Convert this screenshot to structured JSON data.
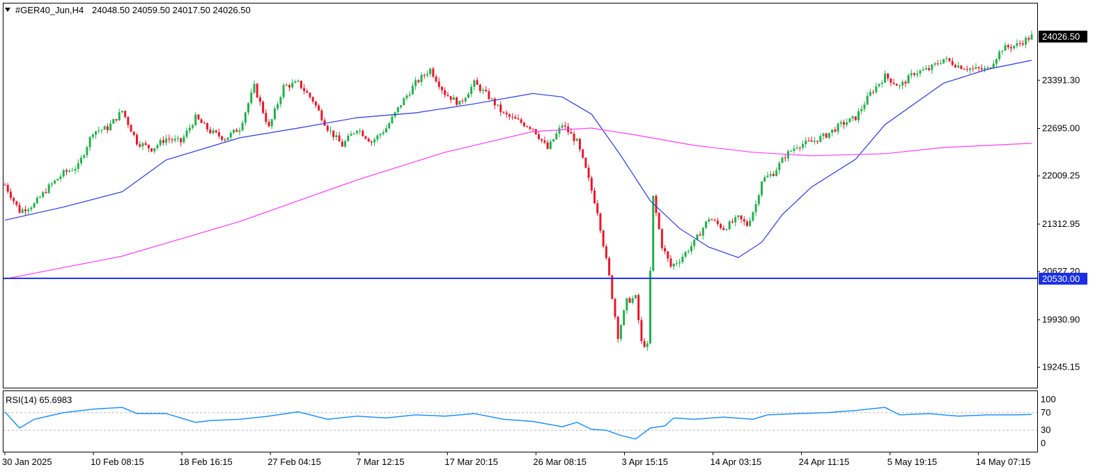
{
  "chart_data": [
    {
      "type": "candlestick",
      "symbol_label": "#GER40_Jun,H4",
      "ohlc_label": "24048.50 24059.50 24017.50 24026.50",
      "current_price_label": "24026.50",
      "hline_label": "20530.00",
      "hline_value": 20530.0,
      "ylim": [
        18950,
        24500
      ],
      "yticks": [
        "24026.50",
        "23391.30",
        "22695.00",
        "22009.25",
        "21312.95",
        "20627.20",
        "19930.90",
        "19245.15"
      ],
      "ytick_values": [
        24026.5,
        23391.3,
        22695.0,
        22009.25,
        21312.95,
        20627.2,
        19930.9,
        19245.15
      ],
      "xticks": [
        "30 Jan 2025",
        "10 Feb 08:15",
        "18 Feb 16:15",
        "27 Feb 04:15",
        "7 Mar 12:15",
        "17 Mar 20:15",
        "26 Mar 08:15",
        "3 Apr 15:15",
        "14 Apr 03:15",
        "24 Apr 11:15",
        "5 May 19:15",
        "14 May 07:15"
      ],
      "close_path": [
        [
          0,
          21880
        ],
        [
          5,
          21500
        ],
        [
          10,
          21600
        ],
        [
          15,
          21850
        ],
        [
          20,
          22050
        ],
        [
          25,
          22150
        ],
        [
          30,
          22650
        ],
        [
          35,
          22700
        ],
        [
          40,
          22950
        ],
        [
          45,
          22500
        ],
        [
          50,
          22400
        ],
        [
          55,
          22550
        ],
        [
          60,
          22500
        ],
        [
          65,
          22850
        ],
        [
          70,
          22650
        ],
        [
          75,
          22550
        ],
        [
          80,
          22700
        ],
        [
          85,
          23300
        ],
        [
          90,
          22700
        ],
        [
          95,
          23300
        ],
        [
          100,
          23350
        ],
        [
          105,
          23100
        ],
        [
          110,
          22700
        ],
        [
          115,
          22450
        ],
        [
          120,
          22700
        ],
        [
          125,
          22500
        ],
        [
          130,
          22700
        ],
        [
          135,
          23050
        ],
        [
          140,
          23350
        ],
        [
          145,
          23550
        ],
        [
          150,
          23200
        ],
        [
          155,
          23050
        ],
        [
          160,
          23350
        ],
        [
          165,
          23150
        ],
        [
          170,
          22900
        ],
        [
          175,
          22800
        ],
        [
          180,
          22700
        ],
        [
          185,
          22400
        ],
        [
          190,
          22750
        ],
        [
          195,
          22500
        ],
        [
          198,
          22100
        ],
        [
          202,
          21500
        ],
        [
          206,
          20550
        ],
        [
          209,
          19700
        ],
        [
          212,
          20200
        ],
        [
          215,
          20250
        ],
        [
          217,
          19600
        ],
        [
          219,
          19550
        ],
        [
          221,
          21700
        ],
        [
          224,
          21000
        ],
        [
          227,
          20700
        ],
        [
          230,
          20800
        ],
        [
          235,
          21050
        ],
        [
          240,
          21400
        ],
        [
          245,
          21250
        ],
        [
          250,
          21400
        ],
        [
          253,
          21300
        ],
        [
          256,
          21600
        ],
        [
          258,
          21950
        ],
        [
          262,
          22050
        ],
        [
          266,
          22300
        ],
        [
          270,
          22450
        ],
        [
          275,
          22500
        ],
        [
          280,
          22600
        ],
        [
          285,
          22750
        ],
        [
          290,
          22850
        ],
        [
          295,
          23200
        ],
        [
          300,
          23450
        ],
        [
          305,
          23300
        ],
        [
          310,
          23500
        ],
        [
          315,
          23550
        ],
        [
          320,
          23700
        ],
        [
          325,
          23600
        ],
        [
          330,
          23550
        ],
        [
          335,
          23550
        ],
        [
          340,
          23850
        ],
        [
          345,
          23900
        ],
        [
          350,
          24026.5
        ]
      ],
      "series": [
        {
          "color": "#2b36e6",
          "points": [
            [
              0,
              21370
            ],
            [
              20,
              21560
            ],
            [
              40,
              21780
            ],
            [
              55,
              22240
            ],
            [
              80,
              22560
            ],
            [
              100,
              22700
            ],
            [
              120,
              22850
            ],
            [
              140,
              22920
            ],
            [
              160,
              23050
            ],
            [
              180,
              23200
            ],
            [
              190,
              23150
            ],
            [
              200,
              22900
            ],
            [
              210,
              22300
            ],
            [
              220,
              21650
            ],
            [
              230,
              21250
            ],
            [
              240,
              20980
            ],
            [
              250,
              20830
            ],
            [
              258,
              21050
            ],
            [
              265,
              21450
            ],
            [
              275,
              21850
            ],
            [
              290,
              22250
            ],
            [
              300,
              22750
            ],
            [
              310,
              23050
            ],
            [
              320,
              23350
            ],
            [
              335,
              23550
            ],
            [
              350,
              23680
            ]
          ]
        },
        {
          "color": "#ff3bff",
          "points": [
            [
              0,
              20520
            ],
            [
              40,
              20850
            ],
            [
              80,
              21350
            ],
            [
              120,
              21950
            ],
            [
              150,
              22350
            ],
            [
              180,
              22650
            ],
            [
              200,
              22700
            ],
            [
              215,
              22600
            ],
            [
              235,
              22450
            ],
            [
              255,
              22350
            ],
            [
              275,
              22300
            ],
            [
              300,
              22330
            ],
            [
              320,
              22420
            ],
            [
              350,
              22480
            ]
          ]
        }
      ]
    },
    {
      "type": "line",
      "indicator_label": "RSI(14) 65.6983",
      "ylim": [
        0,
        100
      ],
      "yticks": [
        "100",
        "70",
        "30",
        "0"
      ],
      "ytick_values": [
        100,
        70,
        30,
        0
      ],
      "levels": [
        70,
        30
      ],
      "series": [
        {
          "color": "#1e90ff",
          "points": [
            [
              0,
              72
            ],
            [
              5,
              35
            ],
            [
              10,
              55
            ],
            [
              20,
              70
            ],
            [
              30,
              78
            ],
            [
              40,
              82
            ],
            [
              45,
              68
            ],
            [
              55,
              68
            ],
            [
              65,
              48
            ],
            [
              70,
              52
            ],
            [
              80,
              55
            ],
            [
              90,
              62
            ],
            [
              100,
              72
            ],
            [
              110,
              55
            ],
            [
              120,
              62
            ],
            [
              130,
              58
            ],
            [
              140,
              65
            ],
            [
              150,
              62
            ],
            [
              160,
              68
            ],
            [
              170,
              55
            ],
            [
              180,
              50
            ],
            [
              190,
              38
            ],
            [
              195,
              48
            ],
            [
              200,
              32
            ],
            [
              205,
              30
            ],
            [
              210,
              18
            ],
            [
              215,
              10
            ],
            [
              220,
              35
            ],
            [
              225,
              40
            ],
            [
              228,
              58
            ],
            [
              235,
              55
            ],
            [
              245,
              60
            ],
            [
              255,
              55
            ],
            [
              260,
              65
            ],
            [
              270,
              68
            ],
            [
              280,
              70
            ],
            [
              290,
              75
            ],
            [
              300,
              82
            ],
            [
              305,
              65
            ],
            [
              315,
              68
            ],
            [
              325,
              62
            ],
            [
              335,
              65
            ],
            [
              345,
              65
            ],
            [
              350,
              66
            ]
          ]
        }
      ]
    }
  ]
}
